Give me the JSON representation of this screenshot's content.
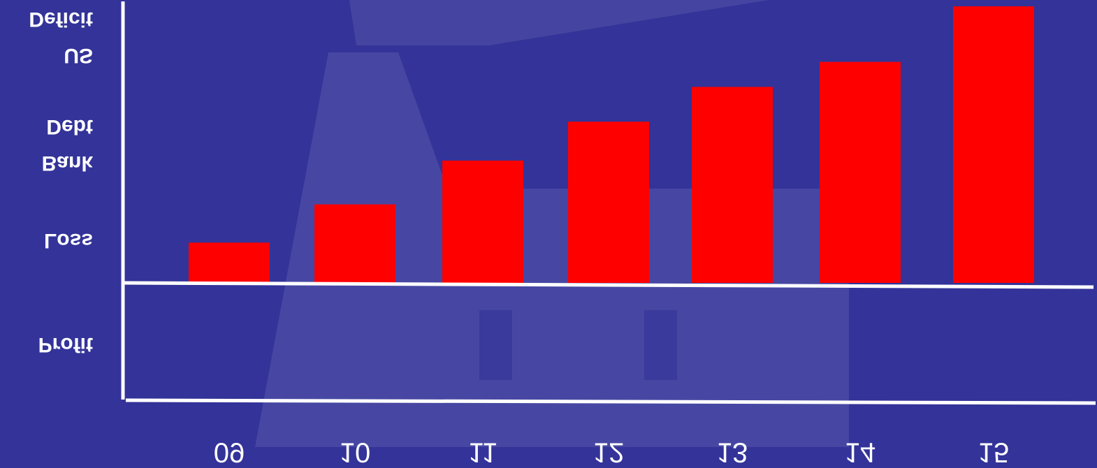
{
  "chart_data": {
    "type": "bar",
    "categories": [
      "09",
      "10",
      "11",
      "12",
      "13",
      "14",
      "15"
    ],
    "values": [
      58,
      113,
      176,
      232,
      282,
      318,
      398
    ],
    "color": "#ff0000",
    "ylim": [
      0,
      400
    ],
    "ylabels": [
      [
        "Profit"
      ],
      [
        "Loss"
      ],
      [
        "Bank",
        "Debt"
      ],
      [
        "US",
        "Deficit"
      ]
    ]
  }
}
